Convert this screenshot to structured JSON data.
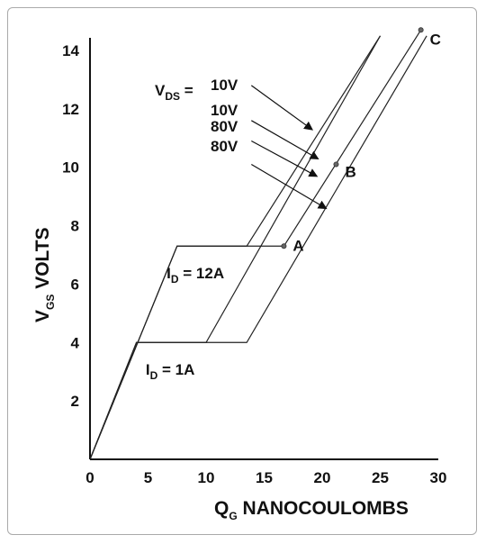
{
  "chart_data": {
    "type": "line",
    "xlim": [
      0,
      30
    ],
    "ylim": [
      0,
      14
    ],
    "x_ticks": [
      0,
      5,
      10,
      15,
      20,
      25,
      30
    ],
    "y_ticks": [
      2,
      4,
      6,
      8,
      10,
      12,
      14
    ],
    "xlabel": {
      "main": "Q",
      "sub": "G",
      "rest": " NANOCOULOMBS"
    },
    "ylabel": {
      "main": "V",
      "sub": "GS",
      "rest": " VOLTS"
    },
    "grid": false,
    "series": [
      {
        "x": [
          0,
          4,
          10,
          25
        ],
        "y": [
          0,
          4,
          4,
          14.5
        ]
      },
      {
        "x": [
          0,
          4,
          13.5,
          29
        ],
        "y": [
          0,
          4,
          4,
          14.5
        ]
      },
      {
        "x": [
          0,
          7.5,
          13.5,
          25
        ],
        "y": [
          0,
          7.3,
          7.3,
          14.5
        ]
      },
      {
        "x": [
          0,
          7.5,
          16.7,
          28.5
        ],
        "y": [
          0,
          7.3,
          7.3,
          14.7
        ]
      }
    ],
    "points": [
      {
        "label": "A",
        "x": 16.7,
        "y": 7.3
      },
      {
        "label": "B",
        "x": 21.2,
        "y": 10.1
      },
      {
        "label": "C",
        "x": 28.5,
        "y": 14.7
      }
    ],
    "vds_label": {
      "main": "V",
      "sub": "DS",
      "rest": " ="
    },
    "vds_labels": [
      "10V",
      "10V",
      "80V",
      "80V"
    ],
    "vds_arrows": [
      {
        "from": [
          13.9,
          12.8
        ],
        "to": [
          19.1,
          11.3
        ]
      },
      {
        "from": [
          13.9,
          11.6
        ],
        "to": [
          19.6,
          10.3
        ]
      },
      {
        "from": [
          13.9,
          10.9
        ],
        "to": [
          19.5,
          9.7
        ]
      },
      {
        "from": [
          13.9,
          10.1
        ],
        "to": [
          20.3,
          8.6
        ]
      }
    ],
    "id_labels": [
      {
        "main": "I",
        "sub": "D",
        "rest": " = 12A",
        "x": 6.6,
        "y": 6.2
      },
      {
        "main": "I",
        "sub": "D",
        "rest": " = 1A",
        "x": 4.8,
        "y": 2.9
      }
    ]
  }
}
